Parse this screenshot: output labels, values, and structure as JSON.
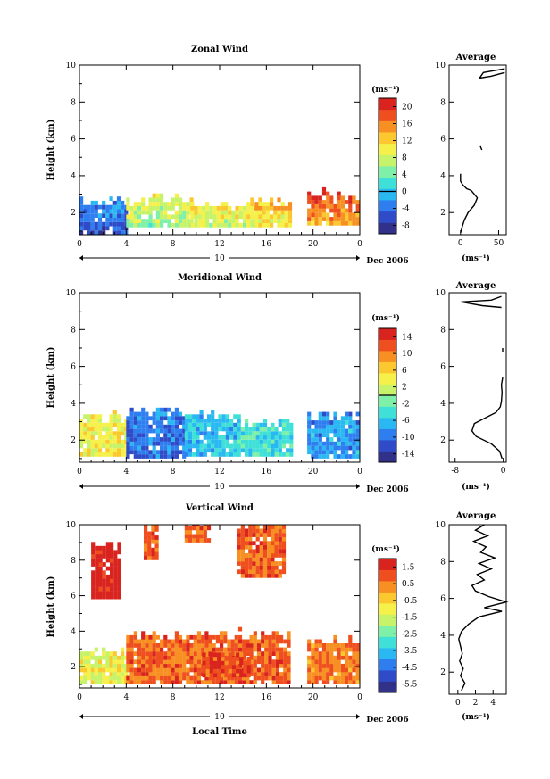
{
  "colors": {
    "colormap": [
      "#31318a",
      "#2f4bc8",
      "#2f7ef0",
      "#2ab8f3",
      "#3fe0d8",
      "#7ff0a8",
      "#c6f36a",
      "#f5f04a",
      "#fbc830",
      "#f78f22",
      "#ef4f1f",
      "#d8231f"
    ],
    "line": "#000000"
  },
  "chart_data": [
    {
      "type": "heatmap",
      "title": "Zonal Wind",
      "xlabel": "",
      "ylabel": "Height (km)",
      "xticks": [
        "0",
        "4",
        "8",
        "12",
        "16",
        "20",
        "0"
      ],
      "yticks": [
        "2",
        "4",
        "6",
        "8",
        "10"
      ],
      "xlim": [
        0,
        24
      ],
      "ylim": [
        0.8,
        10
      ],
      "date_label": "10",
      "date_suffix": "Dec 2006",
      "colorbar": {
        "unit": "(ms⁻¹)",
        "ticks": [
          "-8",
          "-4",
          "0",
          "4",
          "8",
          "12",
          "16",
          "20"
        ],
        "range": [
          -10,
          22
        ],
        "zero_line": 0
      },
      "segments": [
        {
          "t": [
            0.0,
            4.0
          ],
          "h": [
            0.8,
            2.5
          ],
          "value": -6
        },
        {
          "t": [
            4.0,
            9.5
          ],
          "h": [
            1.2,
            2.6
          ],
          "value": 6
        },
        {
          "t": [
            9.5,
            15.0
          ],
          "h": [
            1.2,
            2.4
          ],
          "value": 8
        },
        {
          "t": [
            15.0,
            18.0
          ],
          "h": [
            1.2,
            2.5
          ],
          "value": 10
        },
        {
          "t": [
            19.5,
            24.0
          ],
          "h": [
            1.3,
            2.9
          ],
          "value": 14
        }
      ],
      "profile": {
        "title": "Average",
        "xlabel": "(ms⁻¹)",
        "xticks": [
          "0",
          "50"
        ],
        "yticks": [
          "2",
          "4",
          "6",
          "8",
          "10"
        ],
        "xlim": [
          -15,
          60
        ],
        "segments": [
          {
            "x": [
              0,
              2,
              5,
              10,
              18,
              22,
              18,
              14,
              8,
              3,
              0,
              0,
              0
            ],
            "y": [
              0.9,
              1.2,
              1.6,
              2.0,
              2.4,
              2.8,
              3.0,
              3.2,
              3.3,
              3.5,
              3.7,
              4.0,
              4.1
            ]
          },
          {
            "x": [
              26,
              28
            ],
            "y": [
              5.6,
              5.4
            ]
          },
          {
            "x": [
              58,
              40,
              25,
              30,
              58
            ],
            "y": [
              9.6,
              9.4,
              9.3,
              9.6,
              9.8
            ]
          }
        ]
      }
    },
    {
      "type": "heatmap",
      "title": "Meridional Wind",
      "xlabel": "",
      "ylabel": "Height (km)",
      "xticks": [
        "0",
        "4",
        "8",
        "12",
        "16",
        "20",
        "0"
      ],
      "yticks": [
        "2",
        "4",
        "6",
        "8",
        "10"
      ],
      "xlim": [
        0,
        24
      ],
      "ylim": [
        0.8,
        10
      ],
      "date_label": "10",
      "date_suffix": "Dec 2006",
      "colorbar": {
        "unit": "(ms⁻¹)",
        "ticks": [
          "-14",
          "-10",
          "-6",
          "-2",
          "2",
          "6",
          "10",
          "14"
        ],
        "range": [
          -16,
          16
        ],
        "zero_line": 0
      },
      "segments": [
        {
          "t": [
            0.0,
            4.0
          ],
          "h": [
            1.1,
            3.2
          ],
          "value": 4
        },
        {
          "t": [
            4.0,
            9.0
          ],
          "h": [
            1.0,
            3.5
          ],
          "value": -10
        },
        {
          "t": [
            9.0,
            13.5
          ],
          "h": [
            1.1,
            3.3
          ],
          "value": -6
        },
        {
          "t": [
            13.5,
            18.0
          ],
          "h": [
            1.1,
            2.9
          ],
          "value": -4
        },
        {
          "t": [
            19.5,
            24.0
          ],
          "h": [
            1.0,
            3.2
          ],
          "value": -8
        }
      ],
      "profile": {
        "title": "Average",
        "xlabel": "(ms⁻¹)",
        "xticks": [
          "-8",
          "0"
        ],
        "yticks": [
          "2",
          "4",
          "6",
          "8",
          "10"
        ],
        "xlim": [
          -9,
          0.5
        ],
        "segments": [
          {
            "x": [
              -0.2,
              -0.6,
              -2.0,
              -4.5,
              -5.2,
              -4.8,
              -3.0,
              -1.2,
              -0.5,
              -0.3,
              -0.2,
              -0.3,
              -0.1
            ],
            "y": [
              1.0,
              1.4,
              1.8,
              2.2,
              2.5,
              2.9,
              3.2,
              3.5,
              3.8,
              4.1,
              4.6,
              5.0,
              5.4
            ]
          },
          {
            "x": [
              -0.1,
              -0.1
            ],
            "y": [
              6.8,
              7.0
            ]
          },
          {
            "x": [
              -0.3,
              -3.5,
              -7.0,
              -2.0,
              -0.3
            ],
            "y": [
              9.2,
              9.3,
              9.5,
              9.6,
              9.8
            ]
          }
        ]
      }
    },
    {
      "type": "heatmap",
      "title": "Vertical Wind",
      "xlabel": "Local Time",
      "ylabel": "Height (km)",
      "xticks": [
        "0",
        "4",
        "8",
        "12",
        "16",
        "20",
        "0"
      ],
      "yticks": [
        "2",
        "4",
        "6",
        "8",
        "10"
      ],
      "xlim": [
        0,
        24
      ],
      "ylim": [
        0.8,
        10
      ],
      "date_label": "10",
      "date_suffix": "Dec 2006",
      "colorbar": {
        "unit": "(ms⁻¹)",
        "ticks": [
          "-5.5",
          "-4.5",
          "-3.5",
          "-2.5",
          "-1.5",
          "-0.5",
          "0.5",
          "1.5"
        ],
        "range": [
          -6.0,
          2.0
        ],
        "zero_line": null
      },
      "segments": [
        {
          "t": [
            0.0,
            4.0
          ],
          "h": [
            1.0,
            2.7
          ],
          "value": -1.2
        },
        {
          "t": [
            4.0,
            18.0
          ],
          "h": [
            1.0,
            3.7
          ],
          "value": 0.8
        },
        {
          "t": [
            10.5,
            14.5
          ],
          "h": [
            1.4,
            2.6
          ],
          "value": 1.2
        },
        {
          "t": [
            19.5,
            24.0
          ],
          "h": [
            1.0,
            3.3
          ],
          "value": 0.6
        },
        {
          "t": [
            1.0,
            3.5
          ],
          "h": [
            5.8,
            8.8
          ],
          "value": 1.9
        },
        {
          "t": [
            5.5,
            6.5
          ],
          "h": [
            8.0,
            9.8
          ],
          "value": 0.8
        },
        {
          "t": [
            9.0,
            11.0
          ],
          "h": [
            9.0,
            10.0
          ],
          "value": 0.8
        },
        {
          "t": [
            13.5,
            17.5
          ],
          "h": [
            7.0,
            10.0
          ],
          "value": 0.8
        }
      ],
      "profile": {
        "title": "Average",
        "xlabel": "(ms⁻¹)",
        "xticks": [
          "0",
          "2",
          "4"
        ],
        "yticks": [
          "2",
          "4",
          "6",
          "8",
          "10"
        ],
        "xlim": [
          -1,
          5.5
        ],
        "segments": [
          {
            "x": [
              0.4,
              0.8,
              0.3,
              0.6,
              0.2,
              0.5,
              0.3,
              0.1,
              0.4,
              1.2,
              2.4,
              5.0,
              3.0,
              5.5,
              3.5,
              2.0,
              1.6,
              3.0,
              2.2,
              3.8,
              2.4,
              4.2,
              2.6,
              3.2,
              1.8,
              3.4,
              2.0,
              3.0
            ],
            "y": [
              1.0,
              1.4,
              1.8,
              2.2,
              2.6,
              3.0,
              3.4,
              3.8,
              4.2,
              4.6,
              5.0,
              5.3,
              5.5,
              5.8,
              6.1,
              6.4,
              6.7,
              7.0,
              7.3,
              7.6,
              7.9,
              8.2,
              8.5,
              8.8,
              9.1,
              9.4,
              9.7,
              10.0
            ]
          }
        ]
      }
    }
  ]
}
